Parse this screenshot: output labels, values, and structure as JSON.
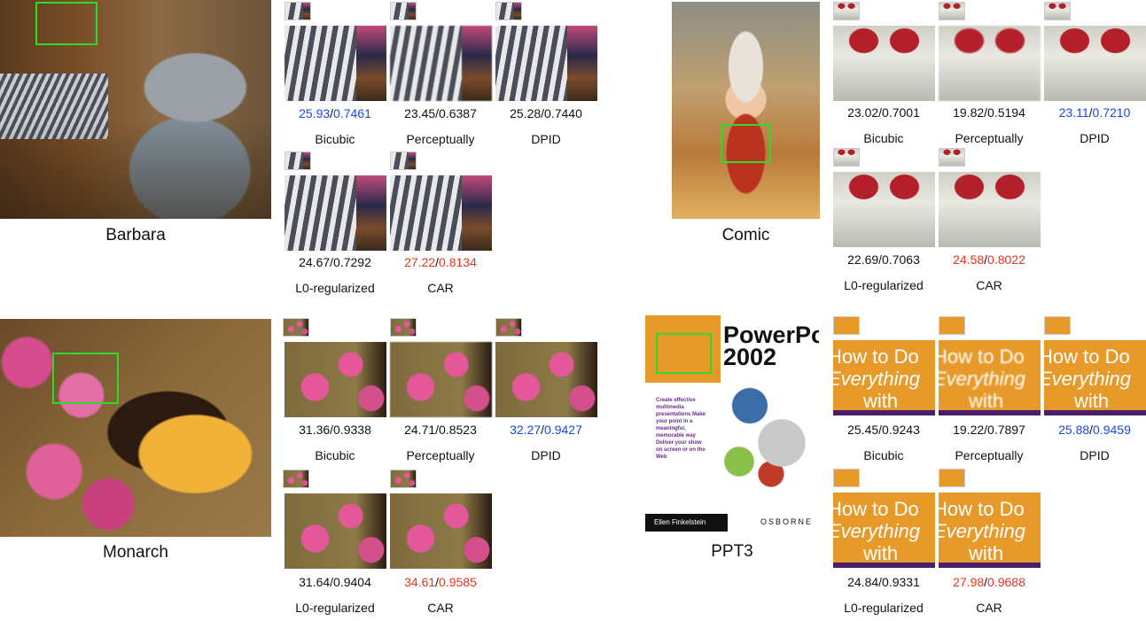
{
  "panels": {
    "barbara": {
      "caption": "Barbara",
      "row1": {
        "labels": [
          "Bicubic",
          "Perceptually",
          "DPID"
        ],
        "scores": [
          {
            "psnr": "25.93",
            "ssim": "0.7461",
            "color": "blue"
          },
          {
            "psnr": "23.45",
            "ssim": "0.6387",
            "color": "black"
          },
          {
            "psnr": "25.28",
            "ssim": "0.7440",
            "color": "black"
          }
        ]
      },
      "row2": {
        "labels": [
          "L0-regularized",
          "CAR"
        ],
        "scores": [
          {
            "psnr": "24.67",
            "ssim": "0.7292",
            "color": "black"
          },
          {
            "psnr": "27.22",
            "ssim": "0.8134",
            "color": "red"
          }
        ]
      }
    },
    "comic": {
      "caption": "Comic",
      "row1": {
        "labels": [
          "Bicubic",
          "Perceptually",
          "DPID"
        ],
        "scores": [
          {
            "psnr": "23.02",
            "ssim": "0.7001",
            "color": "black"
          },
          {
            "psnr": "19.82",
            "ssim": "0.5194",
            "color": "black"
          },
          {
            "psnr": "23.11",
            "ssim": "0.7210",
            "color": "blue"
          }
        ]
      },
      "row2": {
        "labels": [
          "L0-regularized",
          "CAR"
        ],
        "scores": [
          {
            "psnr": "22.69",
            "ssim": "0.7063",
            "color": "black"
          },
          {
            "psnr": "24.58",
            "ssim": "0.8022",
            "color": "red"
          }
        ]
      }
    },
    "monarch": {
      "caption": "Monarch",
      "row1": {
        "labels": [
          "Bicubic",
          "Perceptually",
          "DPID"
        ],
        "scores": [
          {
            "psnr": "31.36",
            "ssim": "0.9338",
            "color": "black"
          },
          {
            "psnr": "24.71",
            "ssim": "0.8523",
            "color": "black"
          },
          {
            "psnr": "32.27",
            "ssim": "0.9427",
            "color": "blue"
          }
        ]
      },
      "row2": {
        "labels": [
          "L0-regularized",
          "CAR"
        ],
        "scores": [
          {
            "psnr": "31.64",
            "ssim": "0.9404",
            "color": "black"
          },
          {
            "psnr": "34.61",
            "ssim": "0.9585",
            "color": "red"
          }
        ]
      }
    },
    "ppt3": {
      "caption": "PPT3",
      "cover": {
        "title_line1": "PowerPoint",
        "title_line2": "2002",
        "crop_line1": "How to Do",
        "crop_line2": "Everything",
        "crop_line3": "with",
        "blurb": "Create effective multimedia presentations Make your point in a meaningful, memorable way Deliver your show on screen or on the Web",
        "author": "Ellen Finkelstein",
        "publisher": "OSBORNE"
      },
      "row1": {
        "labels": [
          "Bicubic",
          "Perceptually",
          "DPID"
        ],
        "scores": [
          {
            "psnr": "25.45",
            "ssim": "0.9243",
            "color": "black"
          },
          {
            "psnr": "19.22",
            "ssim": "0.7897",
            "color": "black"
          },
          {
            "psnr": "25.88",
            "ssim": "0.9459",
            "color": "blue"
          }
        ]
      },
      "row2": {
        "labels": [
          "L0-regularized",
          "CAR"
        ],
        "scores": [
          {
            "psnr": "24.84",
            "ssim": "0.9331",
            "color": "black"
          },
          {
            "psnr": "27.98",
            "ssim": "0.9688",
            "color": "red"
          }
        ]
      }
    }
  },
  "colors": {
    "best": "#e8341c",
    "second": "#1a49e0",
    "roi": "#2bdc2b"
  }
}
